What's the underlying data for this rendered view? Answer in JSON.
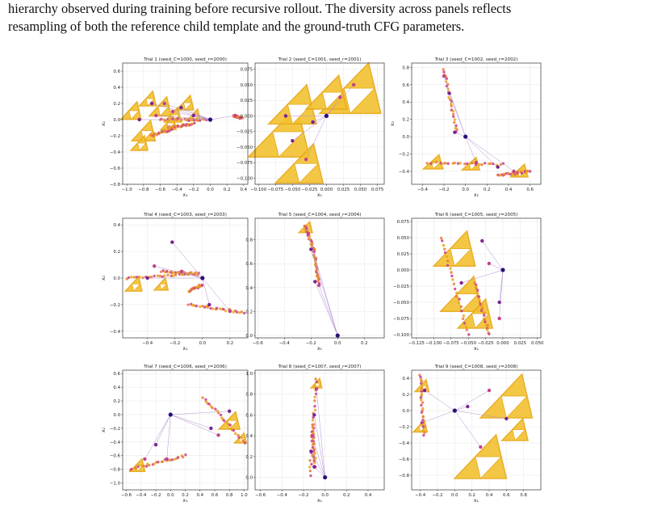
{
  "caption": {
    "line1": "hierarchy observed during training before recursive rollout. The diversity across panels reflects",
    "line2": "resampling of both the reference child template and the ground-truth CFG parameters."
  },
  "colors": {
    "triangle_fill": "#f2c230",
    "triangle_edge": "#e8a817",
    "orange": "#ee7a3a",
    "magenta": "#c4418a",
    "purple": "#7b2390",
    "navy": "#2a0f7a",
    "link": "#b48fd0"
  },
  "chart_data": [
    {
      "type": "scatter",
      "title": "Trial 1 (seed_C=1000, seed_r=2000)",
      "xlabel": "x₁",
      "ylabel": "x₂",
      "xlim": [
        -1.05,
        0.45
      ],
      "ylim": [
        -0.8,
        0.7
      ],
      "xticks": [
        -1.0,
        -0.8,
        -0.6,
        -0.4,
        -0.2,
        0.0,
        0.2,
        0.4
      ],
      "xtick_labels": [
        "−1.0",
        "−0.8",
        "−0.6",
        "−0.4",
        "−0.2",
        "0.0",
        "0.2",
        "0.4"
      ],
      "yticks": [
        -0.8,
        -0.6,
        -0.4,
        -0.2,
        0.0,
        0.2,
        0.4,
        0.6
      ],
      "ytick_labels": [
        "−0.8",
        "−0.6",
        "−0.4",
        "−0.2",
        "0.0",
        "0.2",
        "0.4",
        "0.6"
      ],
      "root": [
        0.0,
        0.0
      ],
      "children": [
        [
          -0.2,
          0.05
        ],
        [
          -0.45,
          0.1
        ],
        [
          -0.7,
          0.2
        ],
        [
          0.3,
          0.05
        ],
        [
          -0.85,
          0.0
        ],
        [
          -0.55,
          0.2
        ],
        [
          -0.35,
          0.15
        ],
        [
          -0.65,
          0.05
        ]
      ],
      "triangles": [
        [
          -0.95,
          0.1,
          0.12
        ],
        [
          -0.8,
          -0.15,
          0.14
        ],
        [
          -0.6,
          0.15,
          0.13
        ],
        [
          -0.75,
          0.25,
          0.1
        ],
        [
          -0.45,
          0.05,
          0.1
        ],
        [
          -0.3,
          0.2,
          0.1
        ],
        [
          -0.5,
          -0.05,
          0.09
        ],
        [
          -0.85,
          -0.3,
          0.1
        ],
        [
          -0.2,
          0.05,
          0.08
        ]
      ],
      "strands": [
        [
          [
            -0.6,
            0.0
          ],
          [
            -0.05,
            0.0
          ]
        ],
        [
          [
            -0.5,
            -0.1
          ],
          [
            -0.2,
            -0.05
          ]
        ],
        [
          [
            -0.7,
            -0.2
          ],
          [
            -0.45,
            -0.12
          ]
        ],
        [
          [
            0.28,
            0.05
          ],
          [
            0.38,
            0.02
          ]
        ]
      ]
    },
    {
      "type": "scatter",
      "title": "Trial 2 (seed_C=1001, seed_r=2001)",
      "xlabel": "x₁",
      "ylabel": "",
      "xlim": [
        -0.105,
        0.085
      ],
      "ylim": [
        -0.11,
        0.085
      ],
      "xticks": [
        -0.1,
        -0.075,
        -0.05,
        -0.025,
        0.0,
        0.025,
        0.05,
        0.075
      ],
      "xtick_labels": [
        "−0.100",
        "−0.075",
        "−0.050",
        "−0.025",
        "0.000",
        "0.025",
        "0.050",
        "0.075"
      ],
      "yticks": [
        -0.1,
        -0.075,
        -0.05,
        -0.025,
        0.0,
        0.025,
        0.05,
        0.075
      ],
      "ytick_labels": [
        "−0.100",
        "−0.075",
        "−0.050",
        "−0.025",
        "0.000",
        "0.025",
        "0.050",
        "0.075"
      ],
      "root": [
        0.0,
        0.0
      ],
      "children": [
        [
          -0.02,
          -0.01
        ],
        [
          0.02,
          0.03
        ],
        [
          -0.05,
          -0.04
        ],
        [
          0.04,
          0.05
        ],
        [
          -0.06,
          0.0
        ],
        [
          -0.03,
          -0.07
        ]
      ],
      "triangles": [
        [
          -0.07,
          -0.03,
          0.045
        ],
        [
          0.035,
          0.04,
          0.045
        ],
        [
          -0.05,
          0.015,
          0.035
        ],
        [
          -0.04,
          -0.08,
          0.035
        ],
        [
          0.0,
          0.035,
          0.03
        ]
      ],
      "strands": []
    },
    {
      "type": "scatter",
      "title": "Trial 3 (seed_C=1002, seed_r=2002)",
      "xlabel": "x₁",
      "ylabel": "x₂",
      "xlim": [
        -0.5,
        0.7
      ],
      "ylim": [
        -0.55,
        0.85
      ],
      "xticks": [
        -0.4,
        -0.2,
        0.0,
        0.2,
        0.4,
        0.6
      ],
      "xtick_labels": [
        "−0.4",
        "−0.2",
        "0.0",
        "0.2",
        "0.4",
        "0.6"
      ],
      "yticks": [
        -0.4,
        -0.2,
        0.0,
        0.2,
        0.4,
        0.6,
        0.8
      ],
      "ytick_labels": [
        "−0.4",
        "−0.2",
        "0.0",
        "0.2",
        "0.4",
        "0.6",
        "0.8"
      ],
      "root": [
        0.0,
        0.0
      ],
      "children": [
        [
          -0.1,
          0.05
        ],
        [
          0.1,
          -0.3
        ],
        [
          0.3,
          -0.35
        ],
        [
          0.45,
          -0.4
        ],
        [
          -0.15,
          0.5
        ],
        [
          -0.2,
          0.7
        ]
      ],
      "triangles": [
        [
          -0.3,
          -0.3,
          0.09
        ],
        [
          0.5,
          -0.4,
          0.08
        ],
        [
          0.05,
          -0.32,
          0.08
        ]
      ],
      "strands": [
        [
          [
            -0.2,
            0.78
          ],
          [
            -0.08,
            0.05
          ]
        ],
        [
          [
            -0.35,
            -0.3
          ],
          [
            0.35,
            -0.32
          ]
        ],
        [
          [
            0.3,
            -0.45
          ],
          [
            0.6,
            -0.4
          ]
        ]
      ]
    },
    {
      "type": "scatter",
      "title": "Trial 4 (seed_C=1003, seed_r=2003)",
      "xlabel": "x₁",
      "ylabel": "x₂",
      "xlim": [
        -0.58,
        0.33
      ],
      "ylim": [
        -0.45,
        0.45
      ],
      "xticks": [
        -0.4,
        -0.2,
        0.0,
        0.2
      ],
      "xtick_labels": [
        "−0.4",
        "−0.2",
        "0.0",
        "0.2"
      ],
      "yticks": [
        -0.4,
        -0.2,
        0.0,
        0.2,
        0.4
      ],
      "ytick_labels": [
        "−0.4",
        "−0.2",
        "0.0",
        "0.2",
        "0.4"
      ],
      "root": [
        0.0,
        0.0
      ],
      "children": [
        [
          -0.22,
          0.27
        ],
        [
          -0.35,
          0.09
        ],
        [
          0.05,
          -0.2
        ],
        [
          0.2,
          -0.25
        ],
        [
          -0.4,
          0.0
        ],
        [
          -0.15,
          0.05
        ]
      ],
      "triangles": [
        [
          -0.5,
          -0.05,
          0.06
        ],
        [
          -0.3,
          -0.05,
          0.05
        ]
      ],
      "strands": [
        [
          [
            -0.55,
            0.0
          ],
          [
            -0.05,
            0.03
          ]
        ],
        [
          [
            -0.3,
            0.05
          ],
          [
            -0.02,
            0.03
          ]
        ],
        [
          [
            -0.1,
            -0.2
          ],
          [
            0.3,
            -0.26
          ]
        ],
        [
          [
            -0.1,
            -0.1
          ],
          [
            0.0,
            -0.05
          ]
        ]
      ]
    },
    {
      "type": "scatter",
      "title": "Trial 5 (seed_C=1004, seed_r=2004)",
      "xlabel": "x₁",
      "ylabel": "",
      "xlim": [
        -0.62,
        0.35
      ],
      "ylim": [
        -0.02,
        0.98
      ],
      "xticks": [
        -0.6,
        -0.4,
        -0.2,
        0.0,
        0.2
      ],
      "xtick_labels": [
        "−0.6",
        "−0.4",
        "−0.2",
        "0.0",
        "0.2"
      ],
      "yticks": [
        0.0,
        0.2,
        0.4,
        0.6,
        0.8
      ],
      "ytick_labels": [
        "0.0",
        "0.2",
        "0.4",
        "0.6",
        "0.8"
      ],
      "root": [
        0.0,
        0.0
      ],
      "children": [
        [
          -0.17,
          0.45
        ],
        [
          -0.14,
          0.42
        ],
        [
          -0.2,
          0.72
        ],
        [
          -0.22,
          0.85
        ]
      ],
      "triangles": [
        [
          -0.24,
          0.9,
          0.05
        ]
      ],
      "strands": [
        [
          [
            -0.25,
            0.92
          ],
          [
            -0.17,
            0.7
          ]
        ],
        [
          [
            -0.18,
            0.7
          ],
          [
            -0.14,
            0.44
          ]
        ]
      ]
    },
    {
      "type": "scatter",
      "title": "Trial 6 (seed_C=1005, seed_r=2005)",
      "xlabel": "x₁",
      "ylabel": "",
      "xlim": [
        -0.132,
        0.055
      ],
      "ylim": [
        -0.105,
        0.08
      ],
      "xticks": [
        -0.125,
        -0.1,
        -0.075,
        -0.05,
        -0.025,
        0.0,
        0.025,
        0.05
      ],
      "xtick_labels": [
        "−0.125",
        "−0.100",
        "−0.075",
        "−0.050",
        "−0.025",
        "0.000",
        "0.025",
        "0.050"
      ],
      "yticks": [
        -0.1,
        -0.075,
        -0.05,
        -0.025,
        0.0,
        0.025,
        0.05,
        0.075
      ],
      "ytick_labels": [
        "−0.100",
        "−0.075",
        "−0.050",
        "−0.025",
        "0.000",
        "0.025",
        "0.050",
        "0.075"
      ],
      "root": [
        0.0,
        0.0
      ],
      "children": [
        [
          -0.03,
          0.045
        ],
        [
          -0.02,
          0.01
        ],
        [
          -0.005,
          -0.05
        ],
        [
          -0.005,
          -0.075
        ],
        [
          -0.06,
          -0.02
        ]
      ],
      "triangles": [
        [
          -0.07,
          0.03,
          0.03
        ],
        [
          -0.06,
          -0.04,
          0.03
        ],
        [
          -0.04,
          -0.07,
          0.025
        ]
      ],
      "strands": [
        [
          [
            -0.09,
            0.05
          ],
          [
            -0.05,
            -0.1
          ]
        ],
        [
          [
            -0.04,
            -0.02
          ],
          [
            -0.02,
            -0.1
          ]
        ]
      ]
    },
    {
      "type": "scatter",
      "title": "Trial 7 (seed_C=1006, seed_r=2006)",
      "xlabel": "x₁",
      "ylabel": "x₂",
      "xlim": [
        -0.65,
        1.05
      ],
      "ylim": [
        -1.1,
        0.65
      ],
      "xticks": [
        -0.6,
        -0.4,
        -0.2,
        0.0,
        0.2,
        0.4,
        0.6,
        0.8,
        1.0
      ],
      "xtick_labels": [
        "−0.6",
        "−0.4",
        "−0.2",
        "0.0",
        "0.2",
        "0.4",
        "0.6",
        "0.8",
        "1.0"
      ],
      "yticks": [
        -1.0,
        -0.8,
        -0.6,
        -0.4,
        -0.2,
        0.0,
        0.2,
        0.4,
        0.6
      ],
      "ytick_labels": [
        "−1.0",
        "−0.8",
        "−0.6",
        "−0.4",
        "−0.2",
        "0.0",
        "0.2",
        "0.4",
        "0.6"
      ],
      "root": [
        0.0,
        0.0
      ],
      "children": [
        [
          -0.2,
          -0.44
        ],
        [
          -0.35,
          -0.65
        ],
        [
          0.55,
          -0.2
        ],
        [
          0.65,
          -0.3
        ],
        [
          0.8,
          0.05
        ],
        [
          -0.05,
          -0.65
        ]
      ],
      "triangles": [
        [
          0.8,
          -0.1,
          0.14
        ],
        [
          -0.45,
          -0.75,
          0.1
        ],
        [
          0.95,
          -0.35,
          0.08
        ]
      ],
      "strands": [
        [
          [
            -0.55,
            -0.8
          ],
          [
            0.2,
            -0.6
          ]
        ],
        [
          [
            0.45,
            0.25
          ],
          [
            1.0,
            -0.4
          ]
        ]
      ]
    },
    {
      "type": "scatter",
      "title": "Trial 8 (seed_C=1007, seed_r=2007)",
      "xlabel": "x₁",
      "ylabel": "",
      "xlim": [
        -0.65,
        0.55
      ],
      "ylim": [
        -0.12,
        1.03
      ],
      "xticks": [
        -0.6,
        -0.4,
        -0.2,
        0.0,
        0.2,
        0.4
      ],
      "xtick_labels": [
        "−0.6",
        "−0.4",
        "−0.2",
        "0.0",
        "0.2",
        "0.4"
      ],
      "yticks": [
        0.0,
        0.2,
        0.4,
        0.6,
        0.8,
        1.0
      ],
      "ytick_labels": [
        "0.0",
        "0.2",
        "0.4",
        "0.6",
        "0.8",
        "1.0"
      ],
      "root": [
        0.0,
        0.0
      ],
      "children": [
        [
          -0.1,
          0.1
        ],
        [
          -0.12,
          0.4
        ],
        [
          -0.1,
          0.6
        ],
        [
          -0.08,
          0.85
        ],
        [
          -0.13,
          0.25
        ]
      ],
      "triangles": [
        [
          -0.08,
          0.9,
          0.05
        ]
      ],
      "strands": [
        [
          [
            -0.08,
            0.95
          ],
          [
            -0.14,
            0.02
          ]
        ],
        [
          [
            -0.12,
            0.5
          ],
          [
            -0.09,
            0.1
          ]
        ]
      ]
    },
    {
      "type": "scatter",
      "title": "Trial 9 (seed_C=1008, seed_r=2008)",
      "xlabel": "x₁",
      "ylabel": "",
      "xlim": [
        -0.5,
        1.0
      ],
      "ylim": [
        -0.98,
        0.5
      ],
      "xticks": [
        -0.4,
        -0.2,
        0.0,
        0.2,
        0.4,
        0.6,
        0.8
      ],
      "xtick_labels": [
        "−0.4",
        "−0.2",
        "0.0",
        "0.2",
        "0.4",
        "0.6",
        "0.8"
      ],
      "yticks": [
        -0.8,
        -0.6,
        -0.4,
        -0.2,
        0.0,
        0.2,
        0.4
      ],
      "ytick_labels": [
        "−0.8",
        "−0.6",
        "−0.4",
        "−0.2",
        "0.0",
        "0.2",
        "0.4"
      ],
      "root": [
        0.0,
        0.0
      ],
      "children": [
        [
          0.15,
          0.05
        ],
        [
          0.4,
          0.25
        ],
        [
          0.6,
          -0.1
        ],
        [
          0.3,
          -0.45
        ],
        [
          -0.35,
          0.25
        ],
        [
          -0.38,
          -0.15
        ]
      ],
      "triangles": [
        [
          0.6,
          0.15,
          0.3
        ],
        [
          0.3,
          -0.6,
          0.3
        ],
        [
          0.7,
          -0.25,
          0.15
        ],
        [
          -0.38,
          0.3,
          0.08
        ],
        [
          -0.4,
          -0.2,
          0.08
        ]
      ],
      "strands": [
        [
          [
            -0.4,
            0.45
          ],
          [
            -0.36,
            -0.3
          ]
        ]
      ]
    }
  ]
}
